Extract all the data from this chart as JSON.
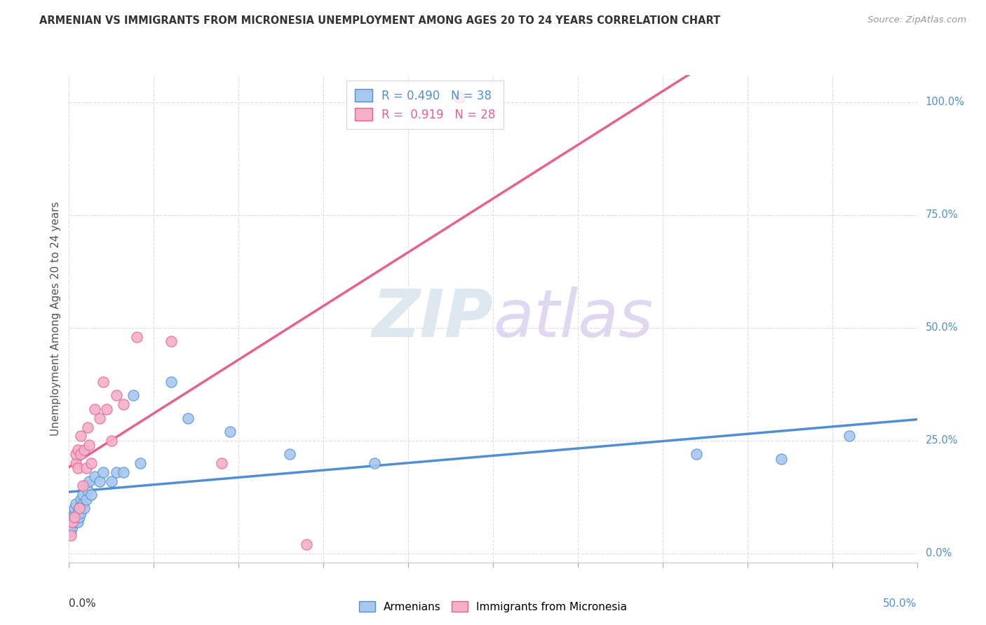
{
  "title": "ARMENIAN VS IMMIGRANTS FROM MICRONESIA UNEMPLOYMENT AMONG AGES 20 TO 24 YEARS CORRELATION CHART",
  "source": "Source: ZipAtlas.com",
  "ylabel": "Unemployment Among Ages 20 to 24 years",
  "ylabel_right_ticks": [
    "100.0%",
    "75.0%",
    "50.0%",
    "25.0%",
    "0.0%"
  ],
  "ylabel_right_vals": [
    1.0,
    0.75,
    0.5,
    0.25,
    0.0
  ],
  "xlim": [
    0.0,
    0.5
  ],
  "ylim": [
    -0.02,
    1.06
  ],
  "watermark_zip": "ZIP",
  "watermark_atlas": "atlas",
  "legend_armenians_R": "0.490",
  "legend_armenians_N": "38",
  "legend_micronesia_R": "0.919",
  "legend_micronesia_N": "28",
  "color_armenians": "#a8c8f0",
  "color_micronesia": "#f4b0c8",
  "color_armenians_line": "#5090d0",
  "color_micronesia_line": "#e86090",
  "armenians_x": [
    0.001,
    0.002,
    0.002,
    0.003,
    0.003,
    0.003,
    0.004,
    0.004,
    0.005,
    0.005,
    0.006,
    0.006,
    0.007,
    0.007,
    0.008,
    0.008,
    0.009,
    0.01,
    0.01,
    0.011,
    0.012,
    0.013,
    0.015,
    0.018,
    0.02,
    0.025,
    0.028,
    0.032,
    0.038,
    0.042,
    0.06,
    0.07,
    0.095,
    0.13,
    0.18,
    0.37,
    0.42,
    0.46
  ],
  "armenians_y": [
    0.05,
    0.08,
    0.06,
    0.09,
    0.07,
    0.1,
    0.08,
    0.11,
    0.07,
    0.09,
    0.1,
    0.08,
    0.12,
    0.09,
    0.11,
    0.13,
    0.1,
    0.15,
    0.12,
    0.14,
    0.16,
    0.13,
    0.17,
    0.16,
    0.18,
    0.16,
    0.18,
    0.18,
    0.35,
    0.2,
    0.38,
    0.3,
    0.27,
    0.22,
    0.2,
    0.22,
    0.21,
    0.26
  ],
  "micronesia_x": [
    0.001,
    0.002,
    0.003,
    0.004,
    0.004,
    0.005,
    0.005,
    0.006,
    0.007,
    0.007,
    0.008,
    0.009,
    0.01,
    0.011,
    0.012,
    0.013,
    0.015,
    0.018,
    0.02,
    0.022,
    0.025,
    0.028,
    0.032,
    0.04,
    0.06,
    0.09,
    0.14,
    0.23
  ],
  "micronesia_y": [
    0.04,
    0.07,
    0.08,
    0.2,
    0.22,
    0.19,
    0.23,
    0.1,
    0.22,
    0.26,
    0.15,
    0.23,
    0.19,
    0.28,
    0.24,
    0.2,
    0.32,
    0.3,
    0.38,
    0.32,
    0.25,
    0.35,
    0.33,
    0.48,
    0.47,
    0.2,
    0.02,
    1.01
  ],
  "grid_color": "#dddddd",
  "background_color": "#ffffff"
}
